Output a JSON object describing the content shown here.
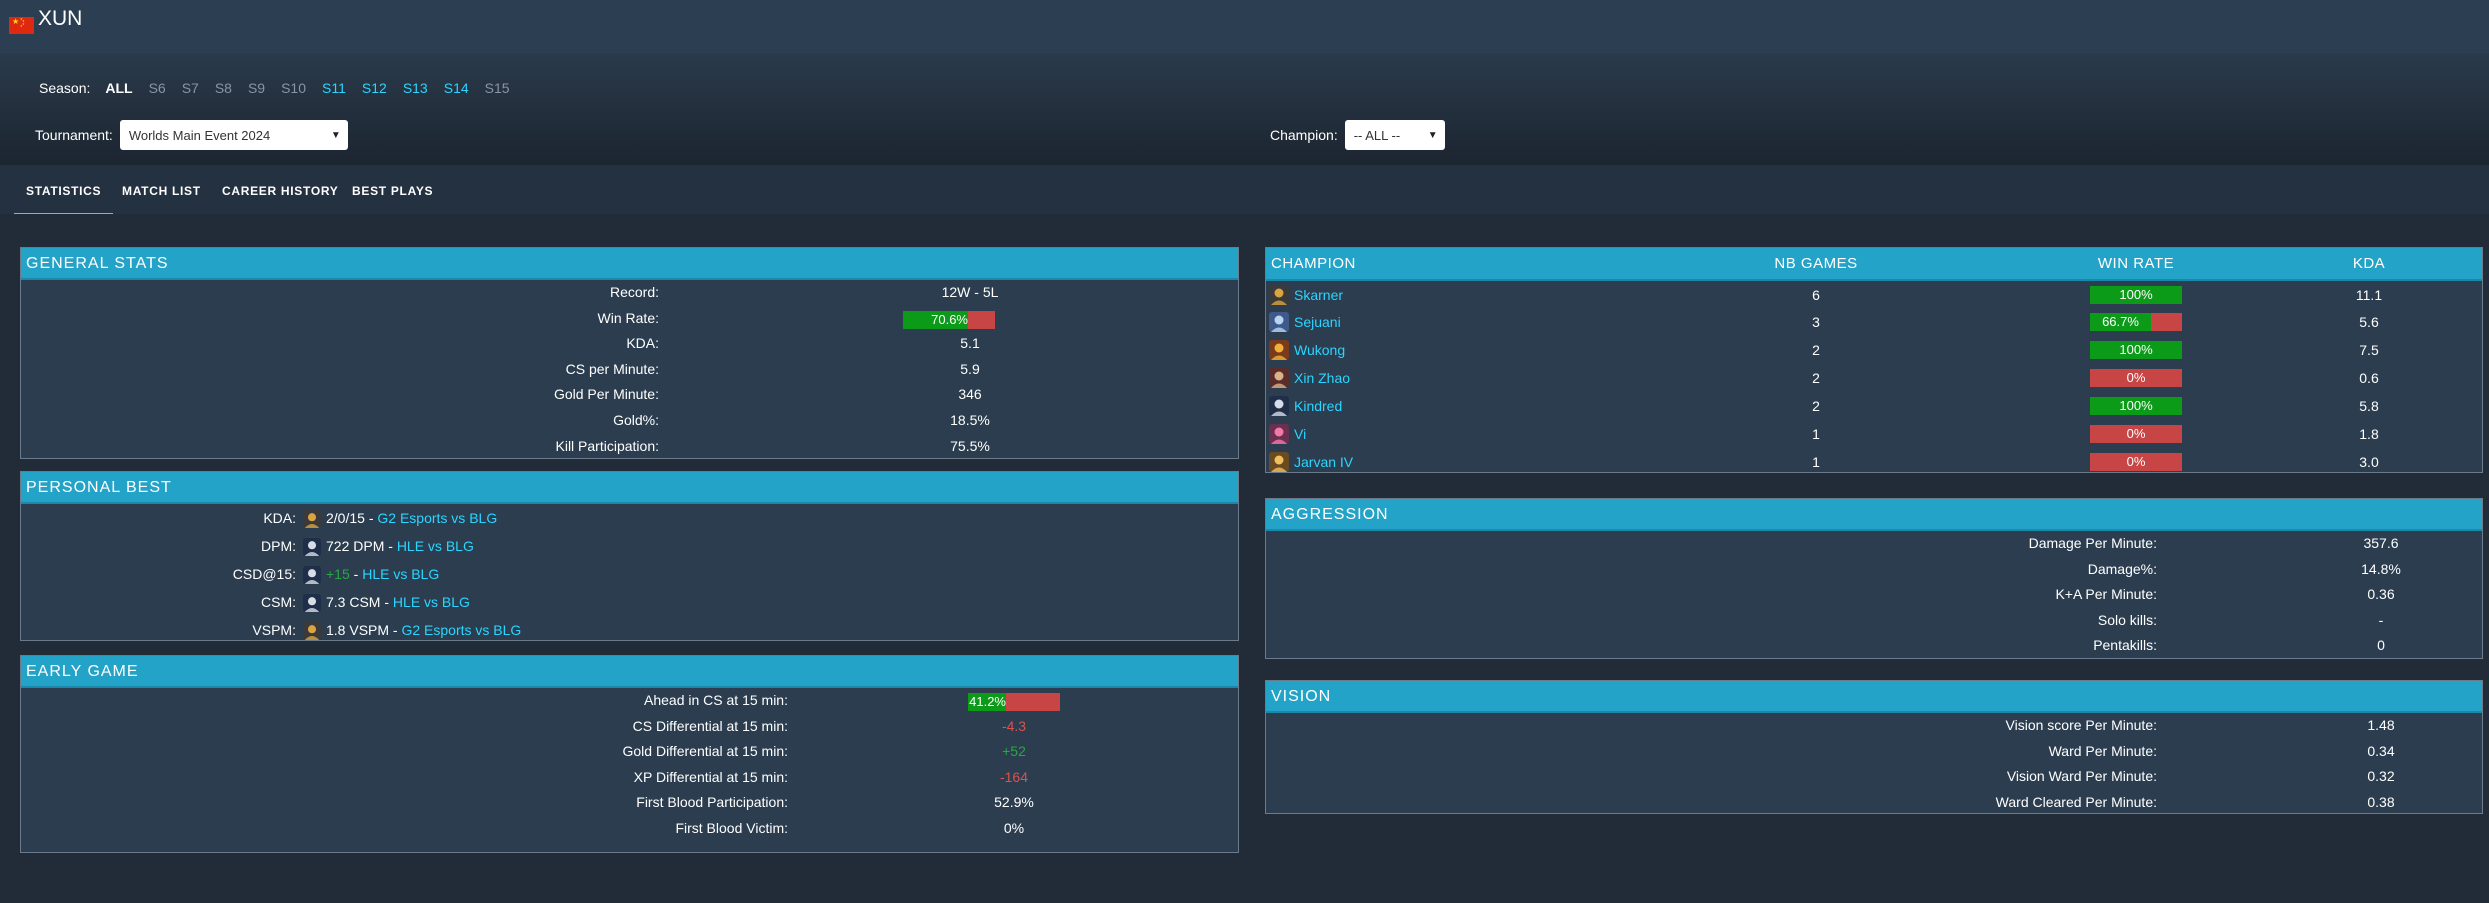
{
  "player": {
    "name": "XUN",
    "flag": "china-flag-icon"
  },
  "season": {
    "label": "Season:",
    "items": [
      {
        "label": "ALL",
        "state": "selected"
      },
      {
        "label": "S6",
        "state": "disabled"
      },
      {
        "label": "S7",
        "state": "disabled"
      },
      {
        "label": "S8",
        "state": "disabled"
      },
      {
        "label": "S9",
        "state": "disabled"
      },
      {
        "label": "S10",
        "state": "disabled"
      },
      {
        "label": "S11",
        "state": "active"
      },
      {
        "label": "S12",
        "state": "active"
      },
      {
        "label": "S13",
        "state": "active"
      },
      {
        "label": "S14",
        "state": "active"
      },
      {
        "label": "S15",
        "state": "disabled"
      }
    ]
  },
  "tournament": {
    "label": "Tournament:",
    "value": "Worlds Main Event 2024"
  },
  "champion_filter": {
    "label": "Champion:",
    "value": "-- ALL --"
  },
  "tabs": [
    {
      "label": "STATISTICS",
      "active": true
    },
    {
      "label": "MATCH LIST",
      "active": false
    },
    {
      "label": "CAREER HISTORY",
      "active": false
    },
    {
      "label": "BEST PLAYS",
      "active": false
    }
  ],
  "general_stats": {
    "title": "GENERAL STATS",
    "record": {
      "label": "Record:",
      "value": "12W - 5L"
    },
    "win_rate": {
      "label": "Win Rate:",
      "value": "70.6%",
      "fraction": 0.706
    },
    "rows": [
      {
        "label": "KDA:",
        "value": "5.1"
      },
      {
        "label": "CS per Minute:",
        "value": "5.9"
      },
      {
        "label": "Gold Per Minute:",
        "value": "346"
      },
      {
        "label": "Gold%:",
        "value": "18.5%"
      },
      {
        "label": "Kill Participation:",
        "value": "75.5%"
      }
    ]
  },
  "personal_best": {
    "title": "PERSONAL BEST",
    "rows": [
      {
        "label": "KDA:",
        "icon": "skarner-icon",
        "value": "2/0/15",
        "value_color": "",
        "sep": " - ",
        "match": "G2 Esports vs BLG"
      },
      {
        "label": "DPM:",
        "icon": "kindred-icon",
        "value": "722 DPM",
        "value_color": "",
        "sep": " - ",
        "match": "HLE vs BLG"
      },
      {
        "label": "CSD@15:",
        "icon": "kindred-icon",
        "value": "+15",
        "value_color": "pos",
        "sep": " - ",
        "match": "HLE vs BLG"
      },
      {
        "label": "CSM:",
        "icon": "kindred-icon",
        "value": "7.3 CSM",
        "value_color": "",
        "sep": " - ",
        "match": "HLE vs BLG"
      },
      {
        "label": "VSPM:",
        "icon": "skarner-icon",
        "value": "1.8 VSPM",
        "value_color": "",
        "sep": " - ",
        "match": "G2 Esports vs BLG"
      }
    ]
  },
  "early_game": {
    "title": "EARLY GAME",
    "ahead": {
      "label": "Ahead in CS at 15 min:",
      "value": "41.2%",
      "fraction": 0.412
    },
    "rows": [
      {
        "label": "CS Differential at 15 min:",
        "value": "-4.3",
        "color": "neg"
      },
      {
        "label": "Gold Differential at 15 min:",
        "value": "+52",
        "color": "pos"
      },
      {
        "label": "XP Differential at 15 min:",
        "value": "-164",
        "color": "neg"
      },
      {
        "label": "First Blood Participation:",
        "value": "52.9%",
        "color": ""
      },
      {
        "label": "First Blood Victim:",
        "value": "0%",
        "color": ""
      }
    ]
  },
  "champions": {
    "headers": {
      "champion": "CHAMPION",
      "games": "NB GAMES",
      "winrate": "WIN RATE",
      "kda": "KDA"
    },
    "rows": [
      {
        "name": "Skarner",
        "icon": "skarner-icon",
        "games": "6",
        "winrate": "100%",
        "fraction": 1.0,
        "kda": "11.1"
      },
      {
        "name": "Sejuani",
        "icon": "sejuani-icon",
        "games": "3",
        "winrate": "66.7%",
        "fraction": 0.667,
        "kda": "5.6"
      },
      {
        "name": "Wukong",
        "icon": "wukong-icon",
        "games": "2",
        "winrate": "100%",
        "fraction": 1.0,
        "kda": "7.5"
      },
      {
        "name": "Xin Zhao",
        "icon": "xin-zhao-icon",
        "games": "2",
        "winrate": "0%",
        "fraction": 0.0,
        "kda": "0.6"
      },
      {
        "name": "Kindred",
        "icon": "kindred-icon",
        "games": "2",
        "winrate": "100%",
        "fraction": 1.0,
        "kda": "5.8"
      },
      {
        "name": "Vi",
        "icon": "vi-icon",
        "games": "1",
        "winrate": "0%",
        "fraction": 0.0,
        "kda": "1.8"
      },
      {
        "name": "Jarvan IV",
        "icon": "jarvan-iv-icon",
        "games": "1",
        "winrate": "0%",
        "fraction": 0.0,
        "kda": "3.0"
      }
    ]
  },
  "aggression": {
    "title": "AGGRESSION",
    "rows": [
      {
        "label": "Damage Per Minute:",
        "value": "357.6"
      },
      {
        "label": "Damage%:",
        "value": "14.8%"
      },
      {
        "label": "K+A Per Minute:",
        "value": "0.36"
      },
      {
        "label": "Solo kills:",
        "value": "-"
      },
      {
        "label": "Pentakills:",
        "value": "0"
      }
    ]
  },
  "vision": {
    "title": "VISION",
    "rows": [
      {
        "label": "Vision score Per Minute:",
        "value": "1.48"
      },
      {
        "label": "Ward Per Minute:",
        "value": "0.34"
      },
      {
        "label": "Vision Ward Per Minute:",
        "value": "0.32"
      },
      {
        "label": "Ward Cleared Per Minute:",
        "value": "0.38"
      }
    ]
  },
  "colors": {
    "accent": "#2bd5ff",
    "header": "#22a3c7",
    "win": "#0b9b19",
    "loss": "#c74545",
    "panel": "#2b3d4f"
  }
}
